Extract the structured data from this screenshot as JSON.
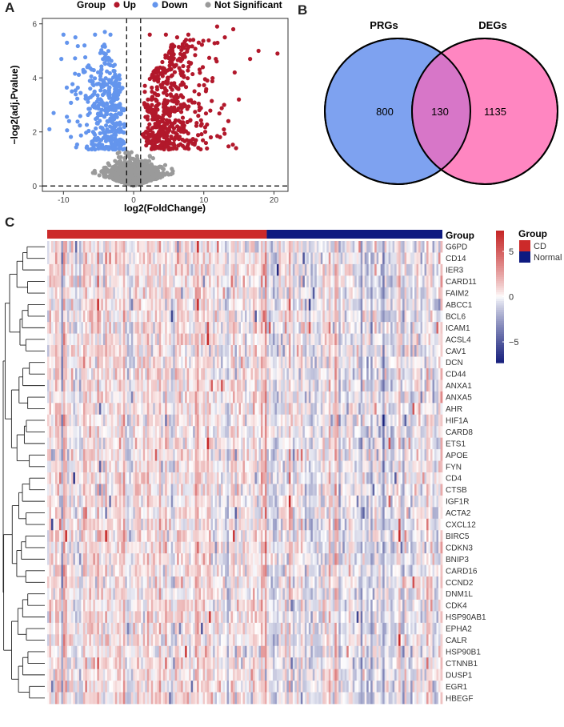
{
  "panels": {
    "a": "A",
    "b": "B",
    "c": "C"
  },
  "chart_data": [
    {
      "type": "scatter",
      "panel": "A",
      "title": "",
      "xlabel": "log2(FoldChange)",
      "ylabel": "−log2(adj.Pvalue)",
      "xlim": [
        -13,
        22
      ],
      "ylim": [
        -0.2,
        6.2
      ],
      "x_ticks": [
        -10,
        0,
        10,
        20
      ],
      "y_ticks": [
        0,
        2,
        4,
        6
      ],
      "threshold_lines": {
        "x": [
          -1,
          1
        ],
        "y": [
          0
        ]
      },
      "legend": {
        "title": "Group",
        "placement": "top",
        "entries": [
          {
            "label": "Up",
            "color": "#b2182b"
          },
          {
            "label": "Down",
            "color": "#6495ed"
          },
          {
            "label": "Not Significant",
            "color": "#9a9a9a"
          }
        ]
      },
      "series": [
        {
          "name": "Up",
          "color": "#b2182b",
          "x_range": [
            1,
            21
          ],
          "y_range": [
            1.3,
            5.9
          ],
          "points": [
            [
              2.3,
              5.6
            ],
            [
              4.6,
              5.6
            ],
            [
              6.2,
              5.5
            ],
            [
              7.8,
              5.6
            ],
            [
              11.9,
              5.9
            ],
            [
              14.2,
              5.8
            ],
            [
              13,
              5.5
            ],
            [
              20.5,
              4.9
            ],
            [
              17.8,
              5.0
            ],
            [
              16.6,
              4.7
            ],
            [
              14.4,
              4.2
            ],
            [
              15,
              3.2
            ],
            [
              12.9,
              3.0
            ],
            [
              13.5,
              2.4
            ],
            [
              14.6,
              1.4
            ],
            [
              11,
              1.8
            ],
            [
              10.5,
              3.9
            ]
          ]
        },
        {
          "name": "Down",
          "color": "#6495ed",
          "x_range": [
            -12,
            -1
          ],
          "y_range": [
            1.3,
            5.6
          ],
          "points": [
            [
              -10,
              5.6
            ],
            [
              -8.3,
              5.5
            ],
            [
              -9.5,
              5.3
            ],
            [
              -7,
              5.2
            ],
            [
              -5.5,
              5.6
            ],
            [
              -11.4,
              2.7
            ],
            [
              -12,
              2.1
            ],
            [
              -8.8,
              3.5
            ],
            [
              -9.2,
              2.4
            ],
            [
              -6.6,
              4.4
            ],
            [
              -10.3,
              4.7
            ],
            [
              -3.3,
              5.6
            ],
            [
              -4.1,
              5.7
            ]
          ]
        },
        {
          "name": "Not Significant",
          "color": "#9a9a9a",
          "x_range": [
            -6,
            6
          ],
          "y_range": [
            0,
            1.3
          ]
        }
      ]
    },
    {
      "type": "venn",
      "panel": "B",
      "sets": [
        {
          "name": "PRGs",
          "only": 800,
          "color": "#7ea2f0"
        },
        {
          "name": "DEGs",
          "only": 1135,
          "color": "#ff86c1"
        }
      ],
      "intersection": 130
    },
    {
      "type": "heatmap",
      "panel": "C",
      "annotation_label": "Group",
      "column_groups": [
        {
          "name": "CD",
          "color": "#cc2a2a",
          "columns": 110
        },
        {
          "name": "Normal",
          "color": "#0e1a80",
          "columns": 88
        }
      ],
      "color_scale": {
        "min": -7.3,
        "max": 7.3,
        "ticks": [
          5,
          0,
          -5
        ],
        "colors": [
          "#1a237e",
          "#ffffff",
          "#c62828"
        ]
      },
      "legend_group": {
        "title": "Group",
        "entries": [
          {
            "label": "CD",
            "color": "#cc2a2a"
          },
          {
            "label": "Normal",
            "color": "#0e1a80"
          }
        ]
      },
      "rows": [
        "G6PD",
        "CD14",
        "IER3",
        "CARD11",
        "FAIM2",
        "ABCC1",
        "BCL6",
        "ICAM1",
        "ACSL4",
        "CAV1",
        "DCN",
        "CD44",
        "ANXA1",
        "ANXA5",
        "AHR",
        "HIF1A",
        "CARD8",
        "ETS1",
        "APOE",
        "FYN",
        "CD4",
        "CTSB",
        "IGF1R",
        "ACTA2",
        "CXCL12",
        "BIRC5",
        "CDKN3",
        "BNIP3",
        "CARD16",
        "CCND2",
        "DNM1L",
        "CDK4",
        "HSP90AB1",
        "EPHA2",
        "CALR",
        "HSP90B1",
        "CTNNB1",
        "DUSP1",
        "EGR1",
        "HBEGF"
      ],
      "row_dendrogram": true
    }
  ]
}
